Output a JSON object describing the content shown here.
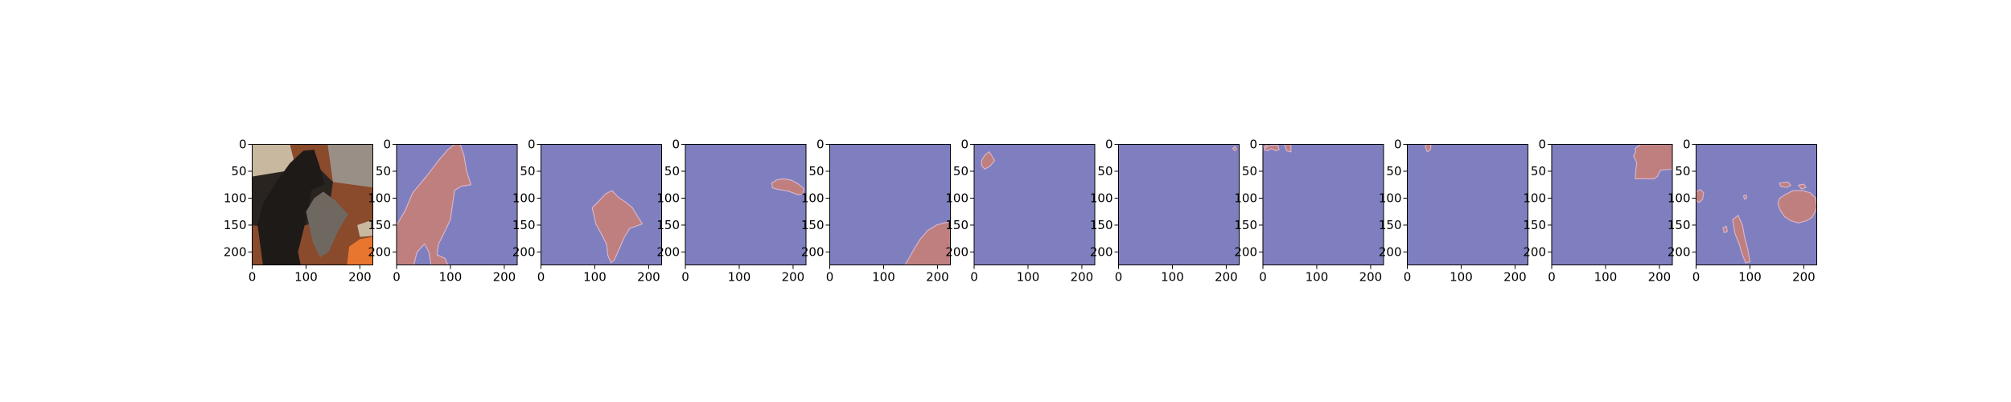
{
  "figure": {
    "background": "#ffffff",
    "mask_background_color": "#7f7fbf",
    "mask_region_color": "#bf7f7f",
    "mask_edge_color": "#d9b3c8"
  },
  "chart_data": {
    "type": "image_grid",
    "panel_count": 11,
    "xlim": [
      0,
      224
    ],
    "ylim": [
      224,
      0
    ],
    "x_ticks": [
      0,
      100,
      200
    ],
    "y_ticks": [
      0,
      50,
      100,
      150,
      200
    ],
    "x_tick_labels": [
      "0",
      "100",
      "200"
    ],
    "y_tick_labels": [
      "0",
      "50",
      "100",
      "150",
      "200"
    ],
    "panels": [
      {
        "index": 0,
        "kind": "photo",
        "scene_colors": {
          "floor": "#8a4a2c",
          "cushion": "#c8b8a0",
          "couch": "#2a2420",
          "dog": "#1d1a18",
          "cat": "#6f6860",
          "ball": "#e8762e",
          "wall": "#9a8f86"
        }
      },
      {
        "index": 1,
        "kind": "mask",
        "regions": [
          [
            [
              0,
              150
            ],
            [
              15,
              125
            ],
            [
              30,
              90
            ],
            [
              55,
              60
            ],
            [
              78,
              30
            ],
            [
              95,
              10
            ],
            [
              108,
              0
            ],
            [
              118,
              0
            ],
            [
              125,
              20
            ],
            [
              130,
              50
            ],
            [
              138,
              75
            ],
            [
              120,
              78
            ],
            [
              108,
              85
            ],
            [
              104,
              110
            ],
            [
              100,
              140
            ],
            [
              88,
              165
            ],
            [
              78,
              185
            ],
            [
              75,
              205
            ],
            [
              90,
              212
            ],
            [
              95,
              224
            ],
            [
              64,
              224
            ],
            [
              60,
              200
            ],
            [
              52,
              185
            ],
            [
              38,
              200
            ],
            [
              32,
              224
            ],
            [
              0,
              224
            ]
          ]
        ]
      },
      {
        "index": 2,
        "kind": "mask",
        "regions": [
          [
            [
              95,
              118
            ],
            [
              108,
              105
            ],
            [
              120,
              92
            ],
            [
              132,
              86
            ],
            [
              143,
              98
            ],
            [
              158,
              108
            ],
            [
              170,
              118
            ],
            [
              188,
              148
            ],
            [
              165,
              156
            ],
            [
              155,
              172
            ],
            [
              145,
              195
            ],
            [
              136,
              215
            ],
            [
              130,
              220
            ],
            [
              124,
              206
            ],
            [
              122,
              186
            ],
            [
              114,
              170
            ],
            [
              102,
              148
            ],
            [
              98,
              130
            ]
          ]
        ]
      },
      {
        "index": 3,
        "kind": "mask",
        "regions": [
          [
            [
              160,
              72
            ],
            [
              170,
              66
            ],
            [
              183,
              64
            ],
            [
              198,
              67
            ],
            [
              210,
              74
            ],
            [
              220,
              82
            ],
            [
              218,
              92
            ],
            [
              210,
              94
            ],
            [
              200,
              90
            ],
            [
              187,
              86
            ],
            [
              173,
              84
            ],
            [
              162,
              81
            ]
          ]
        ]
      },
      {
        "index": 4,
        "kind": "mask",
        "regions": [
          [
            [
              140,
              224
            ],
            [
              148,
              210
            ],
            [
              158,
              192
            ],
            [
              168,
              176
            ],
            [
              182,
              160
            ],
            [
              198,
              150
            ],
            [
              212,
              146
            ],
            [
              224,
              144
            ],
            [
              224,
              224
            ]
          ]
        ]
      },
      {
        "index": 5,
        "kind": "mask",
        "regions": [
          [
            [
              14,
              30
            ],
            [
              20,
              20
            ],
            [
              28,
              14
            ],
            [
              32,
              20
            ],
            [
              38,
              30
            ],
            [
              30,
              40
            ],
            [
              20,
              46
            ],
            [
              14,
              40
            ]
          ]
        ]
      },
      {
        "index": 6,
        "kind": "mask",
        "regions": [
          [
            [
              212,
              8
            ],
            [
              216,
              4
            ],
            [
              219,
              8
            ],
            [
              216,
              12
            ]
          ]
        ]
      },
      {
        "index": 7,
        "kind": "mask",
        "regions": [
          [
            [
              0,
              0
            ],
            [
              8,
              0
            ],
            [
              6,
              5
            ],
            [
              2,
              6
            ]
          ],
          [
            [
              2,
              10
            ],
            [
              8,
              4
            ],
            [
              16,
              2
            ],
            [
              28,
              2
            ],
            [
              30,
              10
            ],
            [
              24,
              12
            ],
            [
              16,
              8
            ],
            [
              8,
              12
            ]
          ],
          [
            [
              40,
              0
            ],
            [
              52,
              0
            ],
            [
              52,
              14
            ],
            [
              44,
              12
            ]
          ]
        ]
      },
      {
        "index": 8,
        "kind": "mask",
        "regions": [
          [
            [
              34,
              0
            ],
            [
              44,
              0
            ],
            [
              43,
              10
            ],
            [
              37,
              14
            ],
            [
              34,
              6
            ]
          ]
        ]
      },
      {
        "index": 9,
        "kind": "mask",
        "regions": [
          [
            [
              155,
              8
            ],
            [
              165,
              0
            ],
            [
              224,
              0
            ],
            [
              224,
              46
            ],
            [
              202,
              48
            ],
            [
              196,
              60
            ],
            [
              190,
              64
            ],
            [
              172,
              64
            ],
            [
              155,
              64
            ],
            [
              156,
              50
            ],
            [
              158,
              34
            ],
            [
              152,
              22
            ],
            [
              156,
              14
            ]
          ]
        ]
      },
      {
        "index": 10,
        "kind": "mask",
        "regions": [
          [
            [
              155,
              100
            ],
            [
              168,
              92
            ],
            [
              180,
              86
            ],
            [
              198,
              86
            ],
            [
              212,
              90
            ],
            [
              222,
              100
            ],
            [
              224,
              118
            ],
            [
              216,
              135
            ],
            [
              205,
              142
            ],
            [
              190,
              146
            ],
            [
              176,
              142
            ],
            [
              164,
              134
            ],
            [
              156,
              122
            ],
            [
              152,
              110
            ]
          ],
          [
            [
              0,
              88
            ],
            [
              8,
              84
            ],
            [
              14,
              90
            ],
            [
              12,
              102
            ],
            [
              6,
              108
            ],
            [
              0,
              104
            ]
          ],
          [
            [
              155,
              72
            ],
            [
              170,
              70
            ],
            [
              176,
              76
            ],
            [
              168,
              80
            ],
            [
              157,
              78
            ]
          ],
          [
            [
              190,
              76
            ],
            [
              200,
              74
            ],
            [
              204,
              80
            ],
            [
              196,
              83
            ]
          ],
          [
            [
              68,
              140
            ],
            [
              78,
              132
            ],
            [
              86,
              150
            ],
            [
              90,
              172
            ],
            [
              96,
              195
            ],
            [
              100,
              218
            ],
            [
              92,
              220
            ],
            [
              86,
              205
            ],
            [
              80,
              185
            ],
            [
              72,
              165
            ]
          ],
          [
            [
              50,
              155
            ],
            [
              56,
              152
            ],
            [
              58,
              162
            ],
            [
              52,
              164
            ]
          ],
          [
            [
              88,
              96
            ],
            [
              93,
              94
            ],
            [
              94,
              100
            ],
            [
              90,
              102
            ]
          ]
        ]
      }
    ]
  }
}
